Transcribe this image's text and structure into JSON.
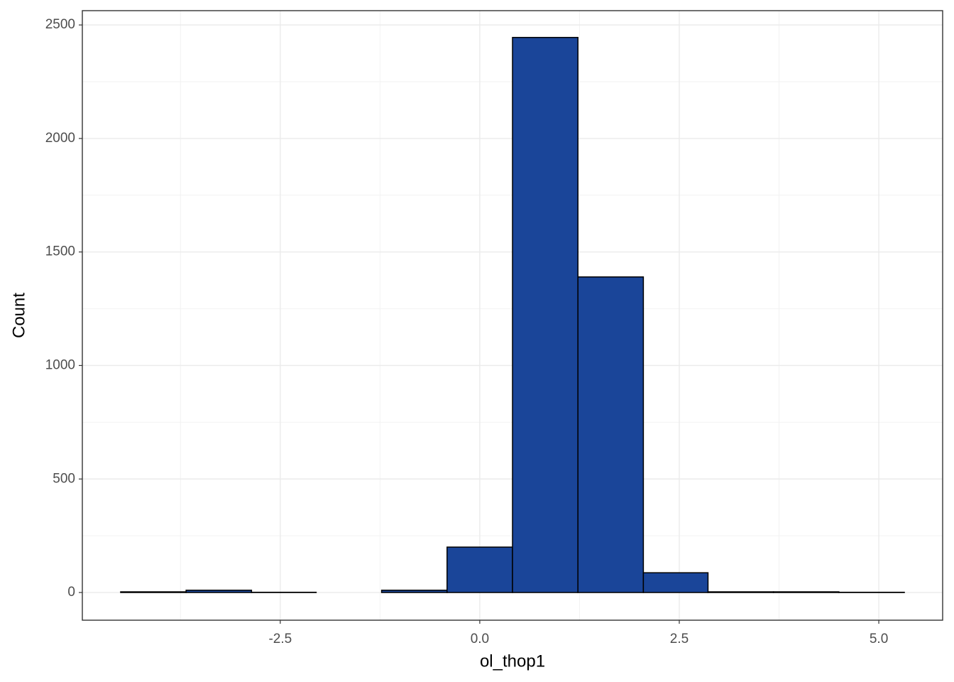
{
  "chart_data": {
    "type": "histogram",
    "x_label": "ol_thop1",
    "y_label": "Count",
    "bins": [
      -4.5,
      -3.68,
      -2.86,
      -2.05,
      -1.23,
      -0.41,
      0.41,
      1.23,
      2.05,
      2.86,
      3.68,
      4.5,
      5.32
    ],
    "counts": [
      3,
      10,
      1,
      0,
      10,
      200,
      2445,
      1390,
      87,
      3,
      3,
      1
    ],
    "color": "#1a4599",
    "xlim": [
      -4.98,
      5.8
    ],
    "ylim": [
      -122,
      2563
    ],
    "xticks": [
      -2.5,
      {
        "value": 0,
        "label": "0.0"
      },
      2.5,
      {
        "value": 5,
        "label": "5.0"
      }
    ],
    "yticks": [
      0,
      500,
      1000,
      1500,
      2000,
      2500
    ],
    "grid": true
  }
}
